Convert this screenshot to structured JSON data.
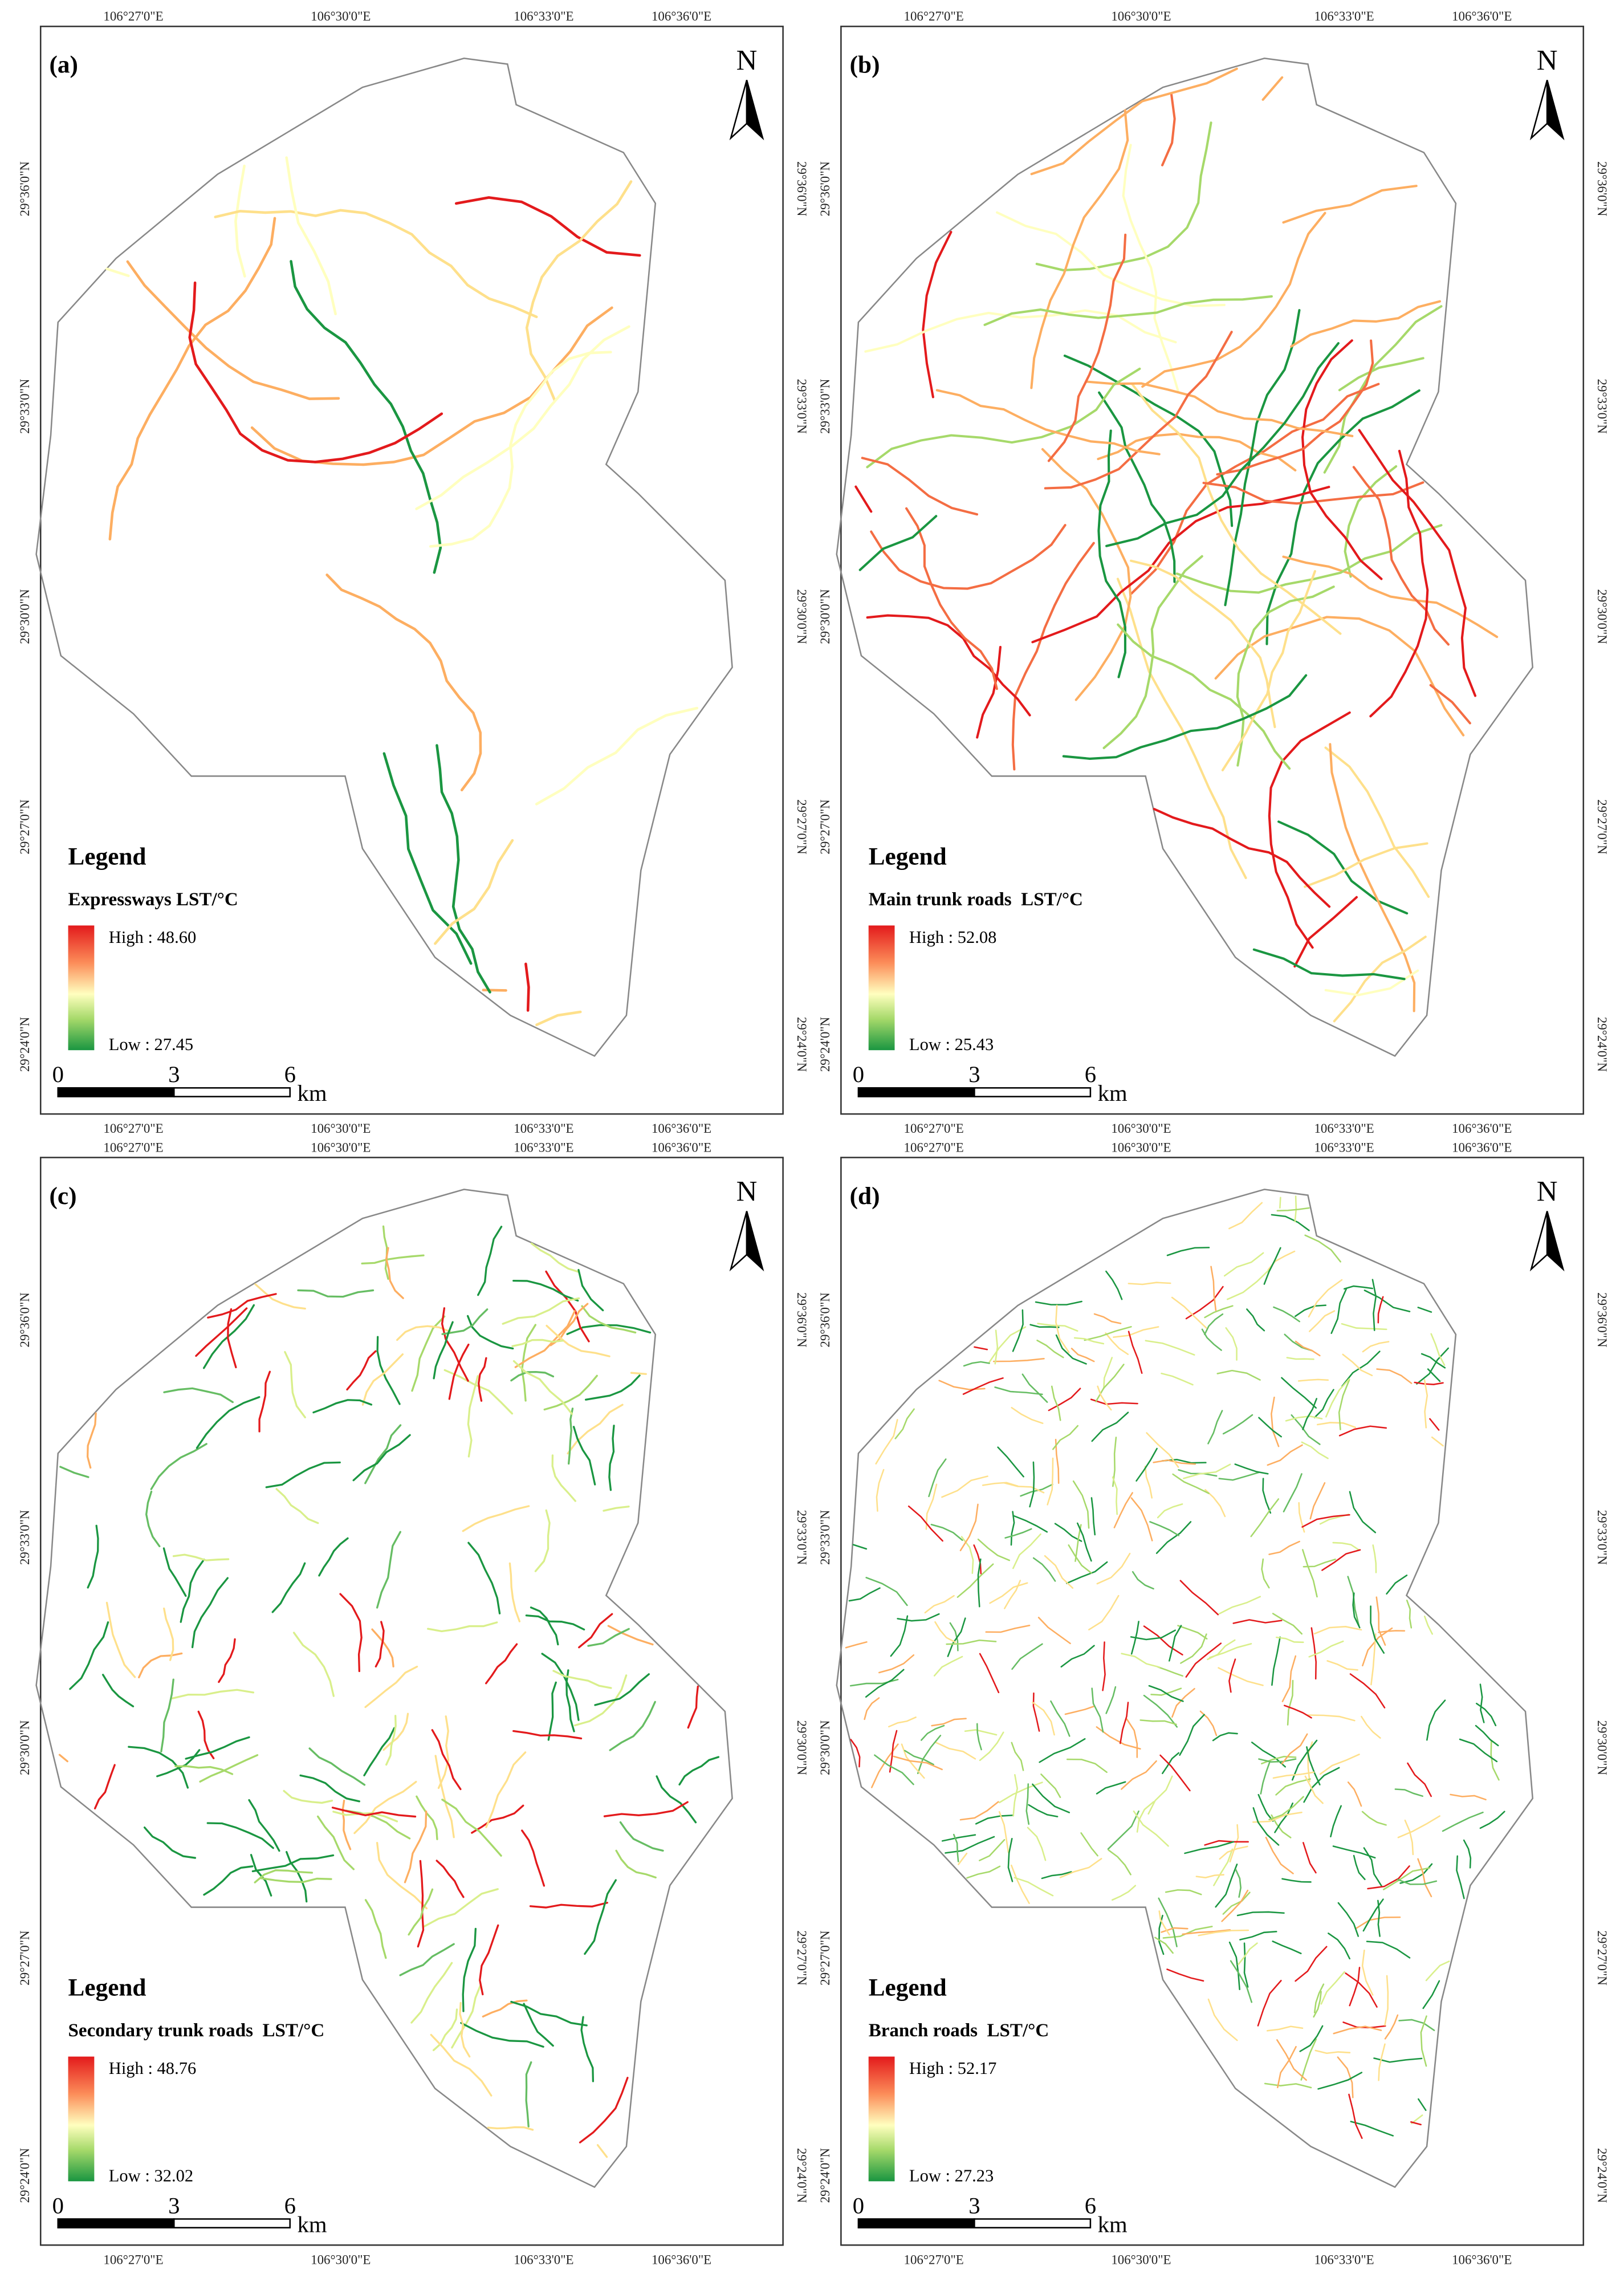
{
  "coordinates": {
    "longitudes": [
      "106°27'0\"E",
      "106°30'0\"E",
      "106°33'0\"E",
      "106°36'0\"E"
    ],
    "latitudes": [
      "29°36'0\"N",
      "29°33'0\"N",
      "29°30'0\"N",
      "29°27'0\"N",
      "29°24'0\"N"
    ]
  },
  "north": "N",
  "scale_bar": {
    "labels": [
      "0",
      "3",
      "6"
    ],
    "unit": "km"
  },
  "panels": [
    {
      "label": "(a)",
      "legend_title": "Legend",
      "layer": "Expressways LST/°C",
      "high": "High : 48.60",
      "low": "Low : 27.45"
    },
    {
      "label": "(b)",
      "legend_title": "Legend",
      "layer": "Main trunk roads  LST/°C",
      "high": "High : 52.08",
      "low": "Low : 25.43"
    },
    {
      "label": "(c)",
      "legend_title": "Legend",
      "layer": "Secondary trunk roads  LST/°C",
      "high": "High : 48.76",
      "low": "Low : 32.02"
    },
    {
      "label": "(d)",
      "legend_title": "Legend",
      "layer": "Branch roads  LST/°C",
      "high": "High : 52.17",
      "low": "Low : 27.23"
    }
  ]
}
